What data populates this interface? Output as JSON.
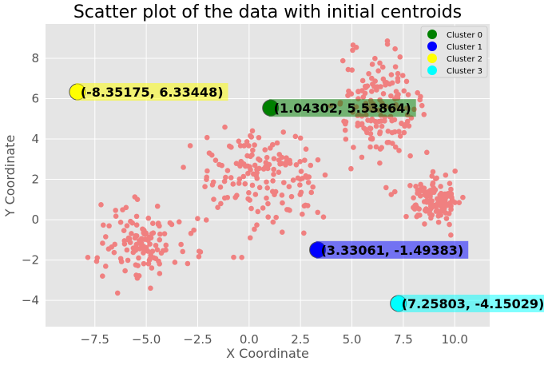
{
  "chart_data": {
    "type": "scatter",
    "title": "Scatter plot of the data with initial centroids",
    "xlabel": "X Coordinate",
    "ylabel": "Y Coordinate",
    "xlim": [
      -9.9,
      11.7
    ],
    "ylim": [
      -5.3,
      9.7
    ],
    "grid": true,
    "x_ticks": [
      -7.5,
      -5.0,
      -2.5,
      0.0,
      2.5,
      5.0,
      7.5,
      10.0
    ],
    "x_tick_labels": [
      "−7.5",
      "−5.0",
      "−2.5",
      "0.0",
      "2.5",
      "5.0",
      "7.5",
      "10.0"
    ],
    "y_ticks": [
      -4,
      -2,
      0,
      2,
      4,
      6,
      8
    ],
    "y_tick_labels": [
      "−4",
      "−2",
      "0",
      "2",
      "4",
      "6",
      "8"
    ],
    "data_color": "#f08080",
    "data_clusters": [
      {
        "center": [
          -5.2,
          -1.0
        ],
        "spread": [
          1.0,
          0.95
        ],
        "count": 120
      },
      {
        "center": [
          0.6,
          2.0
        ],
        "spread": [
          1.6,
          1.25
        ],
        "count": 160
      },
      {
        "center": [
          6.2,
          5.6
        ],
        "spread": [
          1.0,
          1.3
        ],
        "count": 160
      },
      {
        "center": [
          9.0,
          1.0
        ],
        "spread": [
          0.55,
          0.55
        ],
        "count": 130
      }
    ],
    "centroids": [
      {
        "name": "Cluster 0",
        "x": 1.04302,
        "y": 5.53864,
        "color": "#008000",
        "label": "(1.04302, 5.53864)"
      },
      {
        "name": "Cluster 1",
        "x": 3.33061,
        "y": -1.49383,
        "color": "#0000ff",
        "label": "(3.33061, -1.49383)"
      },
      {
        "name": "Cluster 2",
        "x": -8.35175,
        "y": 6.33448,
        "color": "#ffff00",
        "label": "(-8.35175, 6.33448)"
      },
      {
        "name": "Cluster 3",
        "x": 7.25803,
        "y": -4.15029,
        "color": "#00ffff",
        "label": "(7.25803, -4.15029)"
      }
    ],
    "legend": {
      "position": "upper-right",
      "entries": [
        "Cluster 0",
        "Cluster 1",
        "Cluster 2",
        "Cluster 3"
      ]
    }
  }
}
